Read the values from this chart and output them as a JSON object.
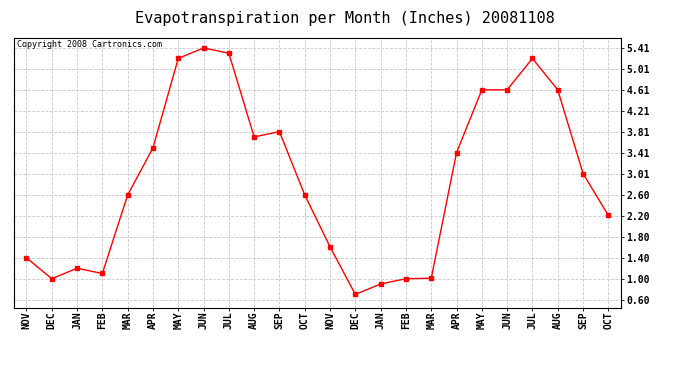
{
  "title": "Evapotranspiration per Month (Inches) 20081108",
  "copyright": "Copyright 2008 Cartronics.com",
  "months": [
    "NOV",
    "DEC",
    "JAN",
    "FEB",
    "MAR",
    "APR",
    "MAY",
    "JUN",
    "JUL",
    "AUG",
    "SEP",
    "OCT",
    "NOV",
    "DEC",
    "JAN",
    "FEB",
    "MAR",
    "APR",
    "MAY",
    "JUN",
    "JUL",
    "AUG",
    "SEP",
    "OCT"
  ],
  "values": [
    1.4,
    1.0,
    1.2,
    1.1,
    2.6,
    3.5,
    5.21,
    5.41,
    5.31,
    3.71,
    3.81,
    2.6,
    1.61,
    0.7,
    0.9,
    1.0,
    1.01,
    3.41,
    4.61,
    4.61,
    5.21,
    4.61,
    3.01,
    2.21
  ],
  "yticks": [
    0.6,
    1.0,
    1.4,
    1.8,
    2.2,
    2.6,
    3.01,
    3.41,
    3.81,
    4.21,
    4.61,
    5.01,
    5.41
  ],
  "ytick_labels": [
    "0.60",
    "1.00",
    "1.40",
    "1.80",
    "2.20",
    "2.60",
    "3.01",
    "3.41",
    "3.81",
    "4.21",
    "4.61",
    "5.01",
    "5.41"
  ],
  "ylim_min": 0.45,
  "ylim_max": 5.61,
  "line_color": "red",
  "marker": "s",
  "marker_size": 2.5,
  "bg_color": "white",
  "grid_color": "#c8c8c8",
  "title_fontsize": 11,
  "copyright_fontsize": 6,
  "tick_fontsize": 7
}
